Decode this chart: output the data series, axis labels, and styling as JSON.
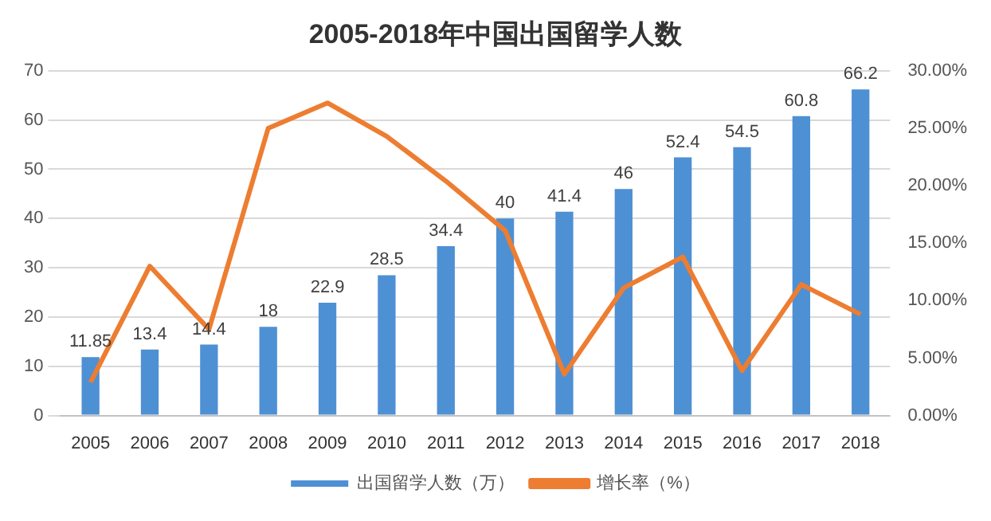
{
  "chart_data": {
    "type": "bar",
    "title": "2005-2018年中国出国留学人数",
    "categories": [
      "2005",
      "2006",
      "2007",
      "2008",
      "2009",
      "2010",
      "2011",
      "2012",
      "2013",
      "2014",
      "2015",
      "2016",
      "2017",
      "2018"
    ],
    "series": [
      {
        "name": "出国留学人数（万）",
        "color": "#4e90d4",
        "values": [
          11.85,
          13.4,
          14.4,
          18,
          22.9,
          28.5,
          34.4,
          40,
          41.4,
          46,
          52.4,
          54.5,
          60.8,
          66.2
        ],
        "value_labels": [
          "11.85",
          "13.4",
          "14.4",
          "18",
          "22.9",
          "28.5",
          "34.4",
          "40",
          "41.4",
          "46",
          "52.4",
          "54.5",
          "60.8",
          "66.2"
        ]
      },
      {
        "name": "增长率（%）",
        "type": "line",
        "axis": "y2",
        "color": "#ed7d31",
        "values": [
          2.9,
          13.0,
          7.5,
          25.0,
          27.2,
          24.3,
          20.4,
          16.1,
          3.6,
          11.1,
          13.8,
          3.9,
          11.4,
          8.8
        ]
      }
    ],
    "ylim": [
      0,
      70
    ],
    "yticks": [
      0,
      10,
      20,
      30,
      40,
      50,
      60,
      70
    ],
    "y2lim": [
      0,
      30
    ],
    "y2ticks": [
      {
        "value": 0,
        "label": "0.00%"
      },
      {
        "value": 5,
        "label": "5.00%"
      },
      {
        "value": 10,
        "label": "10.00%"
      },
      {
        "value": 15,
        "label": "15.00%"
      },
      {
        "value": 20,
        "label": "20.00%"
      },
      {
        "value": 25,
        "label": "25.00%"
      },
      {
        "value": 30,
        "label": "30.00%"
      }
    ],
    "grid": "y",
    "legend": "bottom",
    "marker": "none",
    "line_style": "solid"
  }
}
